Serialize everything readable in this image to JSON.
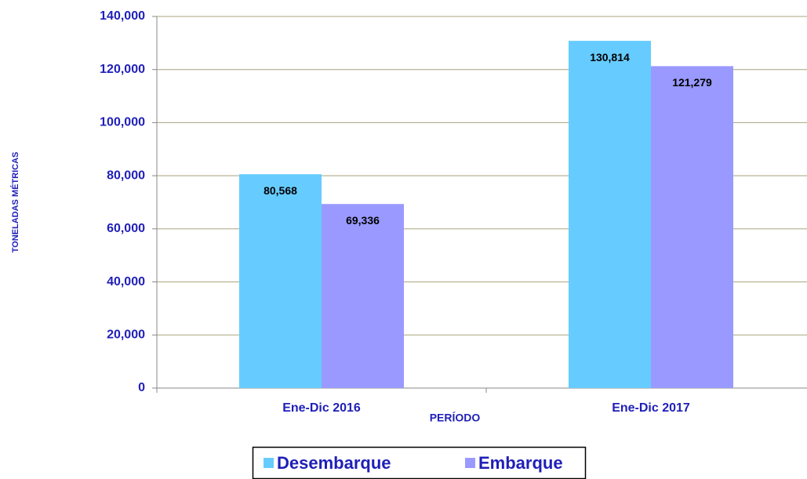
{
  "chart_data": {
    "type": "bar",
    "y_label": "TONELADAS MÉTRICAS",
    "x_label": "PERÍODO",
    "categories": [
      "Ene-Dic 2016",
      "Ene-Dic 2017"
    ],
    "series": [
      {
        "name": "Desembarque",
        "color": "#66ccff",
        "values": [
          80568,
          130814
        ],
        "value_labels": [
          "80,568",
          "130,814"
        ]
      },
      {
        "name": "Embarque",
        "color": "#9999ff",
        "values": [
          69336,
          121279
        ],
        "value_labels": [
          "69,336",
          "121,279"
        ]
      }
    ],
    "ylim": [
      0,
      140000
    ],
    "yticks": [
      0,
      {
        "value": 20000,
        "label": "20,000"
      },
      {
        "value": 40000,
        "label": "40,000"
      },
      {
        "value": 60000,
        "label": "60,000"
      },
      {
        "value": 80000,
        "label": "80,000"
      },
      {
        "value": 100000,
        "label": "100,000"
      },
      {
        "value": 120000,
        "label": "120,000"
      },
      {
        "value": 140000,
        "label": "140,000"
      }
    ],
    "grid": true,
    "legend": "bottom"
  }
}
